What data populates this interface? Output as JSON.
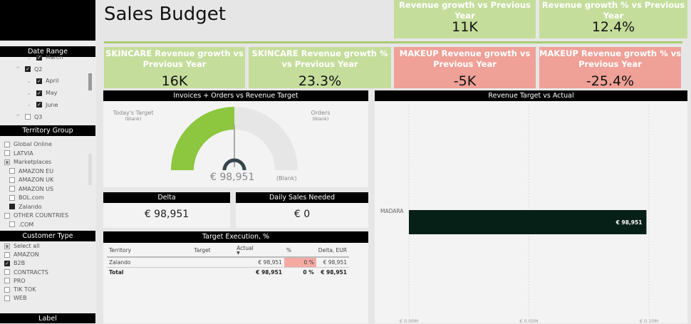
{
  "title": "Sales Budget",
  "colors": {
    "green": "#c5dd9b",
    "red": "#efa097",
    "gauge_fill": "#8dc63f",
    "bar": "#061f17"
  },
  "date_range": {
    "header": "Date Range",
    "items": [
      {
        "label": "March",
        "checked": true
      },
      {
        "label": "Q2",
        "checked": true
      },
      {
        "label": "April",
        "checked": true
      },
      {
        "label": "May",
        "checked": true
      },
      {
        "label": "June",
        "checked": true
      },
      {
        "label": "Q3",
        "checked": false
      }
    ]
  },
  "territory": {
    "header": "Territory Group",
    "items": [
      {
        "label": "Global Online",
        "state": "off"
      },
      {
        "label": "LATVIA",
        "state": "off"
      },
      {
        "label": "Marketplaces",
        "state": "partial"
      },
      {
        "label": "AMAZON EU",
        "state": "off"
      },
      {
        "label": "AMAZON UK",
        "state": "off"
      },
      {
        "label": "AMAZON US",
        "state": "off"
      },
      {
        "label": "BOL.com",
        "state": "off"
      },
      {
        "label": "Zalando",
        "state": "on"
      },
      {
        "label": "OTHER COUNTRIES",
        "state": "off"
      },
      {
        "label": ".COM",
        "state": "off"
      }
    ]
  },
  "customer_type": {
    "header": "Customer Type",
    "items": [
      {
        "label": "Select all",
        "state": "partial"
      },
      {
        "label": "AMAZON",
        "state": "off"
      },
      {
        "label": "B2B",
        "state": "on"
      },
      {
        "label": "CONTRACTS",
        "state": "off"
      },
      {
        "label": "PRO",
        "state": "off"
      },
      {
        "label": "TIK TOK",
        "state": "off"
      },
      {
        "label": "WEB",
        "state": "off"
      }
    ]
  },
  "label_header": "Label",
  "cards": [
    {
      "title": "Revenue growth vs Previous Year",
      "value": "11K"
    },
    {
      "title": "Revenue growth % vs Previous Year",
      "value": "12.4%"
    },
    {
      "title": "SKINCARE Revenue growth vs Previous Year",
      "value": "16K"
    },
    {
      "title": "SKINCARE Revenue growth % vs Previous Year",
      "value": "23.3%"
    },
    {
      "title": "MAKEUP Revenue growth vs Previous Year",
      "value": "-5K"
    },
    {
      "title": "MAKEUP Revenue growth % vs Previous Year",
      "value": "-25.4%"
    }
  ],
  "gauge": {
    "header": "Invoices + Orders vs Revenue Target",
    "left_label": "Today's Target",
    "left_value": "(Blank)",
    "right_label": "Orders",
    "right_value": "(Blank)",
    "value": "€ 98,951",
    "max_label": "(Blank)",
    "fill_fraction": 0.5
  },
  "delta": {
    "header": "Delta",
    "value": "€ 98,951"
  },
  "daily": {
    "header": "Daily Sales Needed",
    "value": "€ 0"
  },
  "target_exec": {
    "header": "Target Execution, %",
    "columns": [
      "Territory",
      "Target",
      "Actual",
      "%",
      "Delta, EUR"
    ],
    "rows": [
      [
        "Zalando",
        "",
        "€ 98,951",
        "0 %",
        "€ 98,951"
      ]
    ],
    "total": [
      "Total",
      "",
      "€ 98,951",
      "0 %",
      "€ 98,951"
    ]
  },
  "chart_data": {
    "type": "bar",
    "orientation": "horizontal",
    "title": "Revenue Target vs Actual",
    "categories": [
      "MADARA"
    ],
    "values": [
      98951
    ],
    "data_labels": [
      "€ 98,951"
    ],
    "xlim": [
      0,
      100000
    ],
    "ticks": [
      "€ 0.00M",
      "€ 0.05M",
      "€ 0.10M"
    ],
    "grid": true
  }
}
